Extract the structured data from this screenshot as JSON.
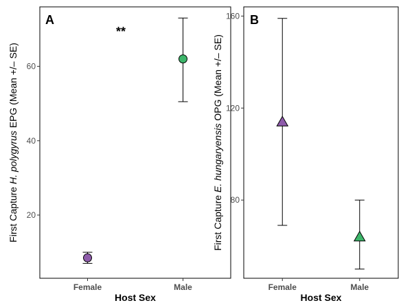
{
  "chart_data": [
    {
      "type": "scatter",
      "tag": "A",
      "xlabel": "Host Sex",
      "ylabel_parts": [
        {
          "text": "First Capture ",
          "italic": false
        },
        {
          "text": "H. polygyrus",
          "italic": true
        },
        {
          "text": " EPG (Mean +/– SE)",
          "italic": false
        }
      ],
      "categories": [
        "Female",
        "Male"
      ],
      "ylim": [
        3,
        76
      ],
      "yticks": [
        20,
        40,
        60
      ],
      "marker": "circle",
      "grid": false,
      "annotation": "**",
      "points": [
        {
          "x": "Female",
          "y": 8.5,
          "lower": 7,
          "upper": 10,
          "color": "#8E5BAA"
        },
        {
          "x": "Male",
          "y": 62,
          "lower": 50.5,
          "upper": 73,
          "color": "#3DB56A"
        }
      ]
    },
    {
      "type": "scatter",
      "tag": "B",
      "xlabel": "Host Sex",
      "ylabel_parts": [
        {
          "text": "First Capture ",
          "italic": false
        },
        {
          "text": "E. hungaryensis",
          "italic": true
        },
        {
          "text": " OPG (Mean +/– SE)",
          "italic": false
        }
      ],
      "categories": [
        "Female",
        "Male"
      ],
      "ylim": [
        46,
        164
      ],
      "yticks": [
        80,
        120,
        160
      ],
      "marker": "triangle",
      "grid": false,
      "annotation": "",
      "points": [
        {
          "x": "Female",
          "y": 114,
          "lower": 69,
          "upper": 159,
          "color": "#8E5BAA"
        },
        {
          "x": "Male",
          "y": 64,
          "lower": 50,
          "upper": 80,
          "color": "#3DB56A"
        }
      ]
    }
  ]
}
